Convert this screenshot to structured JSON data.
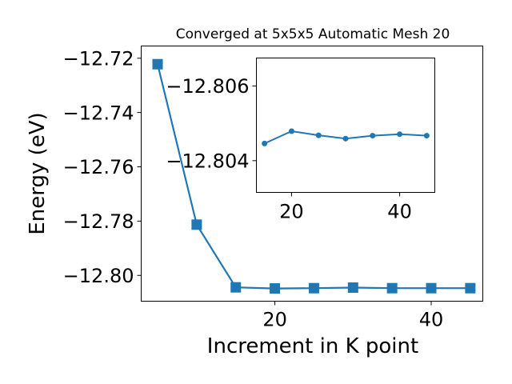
{
  "chart_data": [
    {
      "type": "line",
      "title": "Converged at 5x5x5 Automatic Mesh 20",
      "xlabel": "Increment in K point",
      "ylabel": "Energy (eV)",
      "xlim": [
        2.9,
        46.6
      ],
      "ylim": [
        -12.8095,
        -12.7155
      ],
      "x_ticks": [
        20,
        40
      ],
      "y_ticks": [
        -12.72,
        -12.74,
        -12.76,
        -12.78,
        -12.8
      ],
      "x_tick_labels": [
        "20",
        "40"
      ],
      "y_tick_labels": [
        "−12.72",
        "−12.74",
        "−12.76",
        "−12.78",
        "−12.80"
      ],
      "grid": false,
      "color": "#1f77b4",
      "marker": "square",
      "series": [
        {
          "x": [
            5,
            10,
            15,
            20,
            25,
            30,
            35,
            40,
            45
          ],
          "y": [
            -12.7222,
            -12.7813,
            -12.8044,
            -12.8048,
            -12.8047,
            -12.8045,
            -12.8047,
            -12.8047,
            -12.8047
          ]
        }
      ]
    },
    {
      "type": "line",
      "title": "",
      "xlabel": "",
      "ylabel": "",
      "inverted_y": true,
      "xlim": [
        13.5,
        46.5
      ],
      "ylim": [
        -12.80675,
        -12.80315
      ],
      "x_ticks": [
        20,
        40
      ],
      "y_ticks": [
        -12.806,
        -12.804
      ],
      "x_tick_labels": [
        "20",
        "40"
      ],
      "y_tick_labels": [
        "−12.806",
        "−12.804"
      ],
      "grid": false,
      "color": "#1f77b4",
      "marker": "circle",
      "series": [
        {
          "x": [
            15,
            20,
            25,
            30,
            35,
            40,
            45
          ],
          "y": [
            -12.80446,
            -12.80479,
            -12.80468,
            -12.80459,
            -12.80467,
            -12.80471,
            -12.80467
          ]
        }
      ]
    }
  ]
}
